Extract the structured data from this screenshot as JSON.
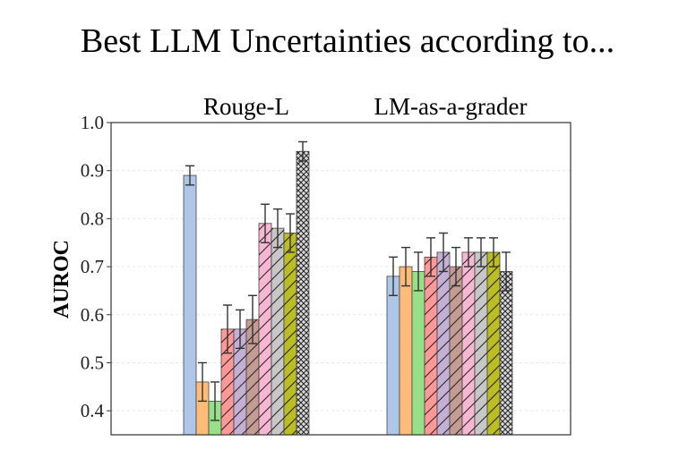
{
  "chart_data": {
    "type": "bar",
    "title": "Best LLM Uncertainties according to...",
    "ylabel": "AUROC",
    "xlabel": "",
    "ylim": [
      0.35,
      1.0
    ],
    "yticks": [
      "0.4",
      "0.5",
      "0.6",
      "0.7",
      "0.8",
      "0.9",
      "1.0"
    ],
    "grid": true,
    "categories": [
      "Rouge-L",
      "LM-as-a-grader"
    ],
    "series": [
      {
        "color": "#aec7e8",
        "pattern": "none",
        "values": [
          0.89,
          0.68
        ],
        "errors": [
          0.02,
          0.04
        ]
      },
      {
        "color": "#ffbb78",
        "pattern": "none",
        "values": [
          0.46,
          0.7
        ],
        "errors": [
          0.04,
          0.04
        ]
      },
      {
        "color": "#98df8a",
        "pattern": "none",
        "values": [
          0.42,
          0.69
        ],
        "errors": [
          0.04,
          0.04
        ]
      },
      {
        "color": "#ff9896",
        "pattern": "diagonal",
        "values": [
          0.57,
          0.72
        ],
        "errors": [
          0.05,
          0.04
        ]
      },
      {
        "color": "#c5b0d5",
        "pattern": "diagonal",
        "values": [
          0.57,
          0.73
        ],
        "errors": [
          0.04,
          0.04
        ]
      },
      {
        "color": "#c49c94",
        "pattern": "diagonal",
        "values": [
          0.59,
          0.7
        ],
        "errors": [
          0.05,
          0.04
        ]
      },
      {
        "color": "#f7b6d2",
        "pattern": "diagonal",
        "values": [
          0.79,
          0.73
        ],
        "errors": [
          0.04,
          0.03
        ]
      },
      {
        "color": "#c7c7c7",
        "pattern": "diagonal",
        "values": [
          0.78,
          0.73
        ],
        "errors": [
          0.04,
          0.03
        ]
      },
      {
        "color": "#bcbd22",
        "pattern": "diagonal",
        "values": [
          0.77,
          0.73
        ],
        "errors": [
          0.04,
          0.03
        ]
      },
      {
        "color": "#d9d9d9",
        "pattern": "crosshatch",
        "values": [
          0.94,
          0.69
        ],
        "errors": [
          0.02,
          0.04
        ]
      }
    ]
  }
}
